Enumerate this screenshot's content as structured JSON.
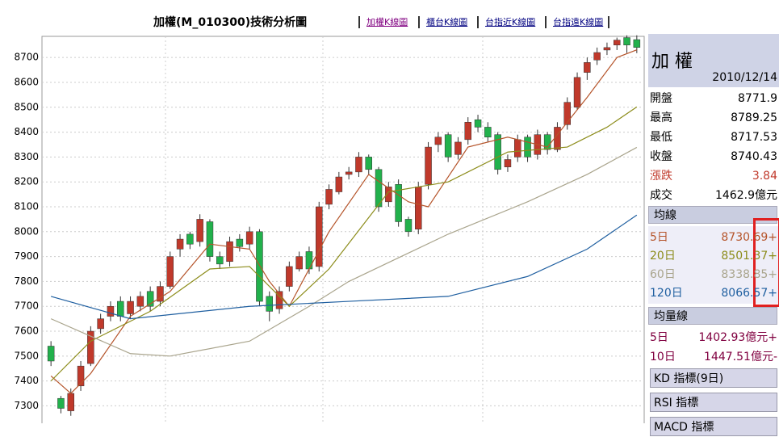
{
  "header": {
    "title": "加權(M_010300)技術分析圖",
    "links": [
      "加權K線圖",
      "櫃台K線圖",
      "台指近K線圖",
      "台指遠K線圖"
    ]
  },
  "chart_data": {
    "type": "candlestick",
    "ylim": [
      7230,
      8785
    ],
    "yticks": [
      7300,
      7400,
      7500,
      7600,
      7700,
      7800,
      7900,
      8000,
      8100,
      8200,
      8300,
      8400,
      8500,
      8600,
      8700
    ],
    "grid": true,
    "up_color": "#c0392b",
    "down_color": "#22b14c",
    "open": [
      7540,
      7330,
      7280,
      7380,
      7470,
      7610,
      7660,
      7720,
      7670,
      7700,
      7760,
      7720,
      7780,
      7930,
      7990,
      7960,
      8040,
      7900,
      7880,
      7970,
      7950,
      8000,
      7740,
      7690,
      7780,
      7850,
      7920,
      7860,
      8110,
      8160,
      8230,
      8240,
      8300,
      8250,
      8120,
      8190,
      8050,
      8010,
      8190,
      8350,
      8390,
      8310,
      8370,
      8450,
      8420,
      8390,
      8260,
      8300,
      8380,
      8310,
      8390,
      8330,
      8430,
      8500,
      8640,
      8690,
      8730,
      8750,
      8780,
      8771.9
    ],
    "high": [
      7560,
      7340,
      7370,
      7480,
      7620,
      7670,
      7720,
      7740,
      7740,
      7760,
      7780,
      7800,
      7920,
      7990,
      8000,
      8070,
      8050,
      7920,
      7980,
      7990,
      8020,
      8010,
      7760,
      7780,
      7880,
      7920,
      7940,
      8120,
      8190,
      8240,
      8260,
      8320,
      8310,
      8260,
      8200,
      8210,
      8060,
      8200,
      8360,
      8400,
      8400,
      8380,
      8460,
      8470,
      8440,
      8400,
      8310,
      8390,
      8390,
      8410,
      8400,
      8440,
      8540,
      8640,
      8700,
      8740,
      8760,
      8780,
      8789,
      8789.25
    ],
    "low": [
      7460,
      7270,
      7260,
      7360,
      7460,
      7590,
      7640,
      7640,
      7650,
      7680,
      7680,
      7700,
      7770,
      7900,
      7930,
      7940,
      7880,
      7850,
      7860,
      7920,
      7930,
      7700,
      7640,
      7670,
      7760,
      7840,
      7830,
      7840,
      8090,
      8150,
      8210,
      8220,
      8230,
      8080,
      8100,
      8020,
      7980,
      7990,
      8170,
      8320,
      8280,
      8290,
      8350,
      8400,
      8360,
      8230,
      8240,
      8280,
      8280,
      8290,
      8310,
      8320,
      8410,
      8490,
      8610,
      8670,
      8710,
      8730,
      8718,
      8717.53
    ],
    "close": [
      7480,
      7290,
      7350,
      7460,
      7600,
      7650,
      7700,
      7660,
      7720,
      7740,
      7700,
      7780,
      7900,
      7970,
      7950,
      8050,
      7900,
      7870,
      7960,
      7940,
      8000,
      7720,
      7680,
      7760,
      7860,
      7900,
      7850,
      8100,
      8170,
      8220,
      8240,
      8300,
      8250,
      8100,
      8180,
      8040,
      8000,
      8180,
      8340,
      8380,
      8300,
      8360,
      8440,
      8420,
      8380,
      8250,
      8290,
      8370,
      8300,
      8390,
      8330,
      8420,
      8520,
      8620,
      8680,
      8720,
      8740,
      8770,
      8750,
      8740.43
    ],
    "lines": [
      {
        "name": "5日",
        "color": "#b5542a",
        "latest": "8730.69+",
        "x": [
          0,
          2,
          4,
          8,
          12,
          16,
          20,
          22,
          24,
          28,
          32,
          36,
          38,
          42,
          46,
          50,
          54,
          57,
          59
        ],
        "values": [
          7420,
          7350,
          7430,
          7660,
          7760,
          7950,
          7930,
          7800,
          7700,
          8000,
          8230,
          8120,
          8100,
          8340,
          8380,
          8340,
          8540,
          8700,
          8730.69
        ]
      },
      {
        "name": "20日",
        "color": "#8c8c1a",
        "latest": "8501.37+",
        "x": [
          0,
          4,
          10,
          16,
          20,
          24,
          28,
          34,
          40,
          46,
          52,
          56,
          59
        ],
        "values": [
          7400,
          7560,
          7680,
          7850,
          7860,
          7700,
          7850,
          8160,
          8200,
          8320,
          8340,
          8420,
          8501.37
        ]
      },
      {
        "name": "60日",
        "color": "#a9a48c",
        "latest": "8338.85+",
        "x": [
          0,
          8,
          12,
          20,
          26,
          30,
          40,
          48,
          54,
          59
        ],
        "values": [
          7650,
          7510,
          7500,
          7560,
          7700,
          7800,
          7990,
          8120,
          8230,
          8338.85
        ]
      },
      {
        "name": "120日",
        "color": "#1f5fa0",
        "latest": "8066.57+",
        "x": [
          0,
          8,
          20,
          30,
          40,
          48,
          54,
          59
        ],
        "values": [
          7740,
          7650,
          7700,
          7720,
          7740,
          7820,
          7930,
          8066.57
        ]
      }
    ]
  },
  "panel": {
    "name": "加 權",
    "date": "2010/12/14",
    "quote": [
      {
        "label": "開盤",
        "value": "8771.9"
      },
      {
        "label": "最高",
        "value": "8789.25"
      },
      {
        "label": "最低",
        "value": "8717.53"
      },
      {
        "label": "收盤",
        "value": "8740.43"
      },
      {
        "label": "漲跌",
        "value": "3.84"
      },
      {
        "label": "成交",
        "value": "1462.9億元"
      }
    ],
    "ma_title": "均線",
    "vol_title": "均量線",
    "vol": [
      {
        "label": "5日",
        "value": "1402.93億元+"
      },
      {
        "label": "10日",
        "value": "1447.51億元-"
      }
    ],
    "buttons": [
      "KD 指標(9日)",
      "RSI 指標",
      "MACD 指標"
    ]
  }
}
